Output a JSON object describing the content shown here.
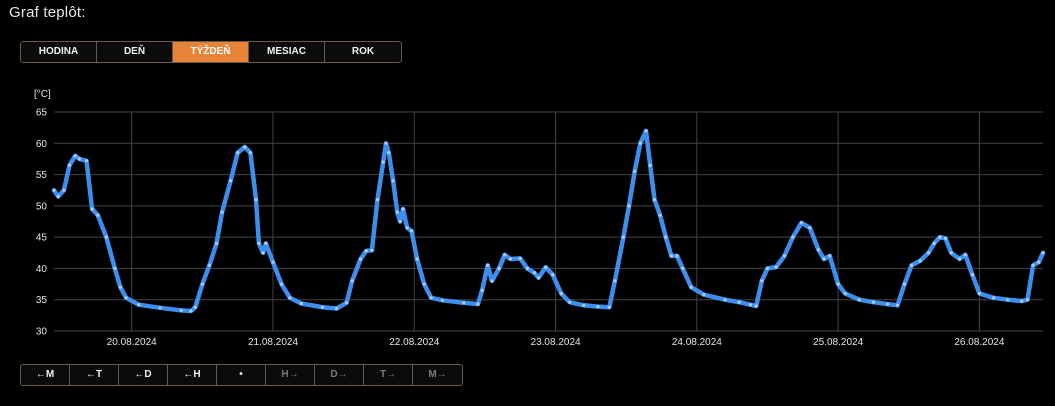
{
  "page": {
    "title": "Graf teplôt:"
  },
  "period_tabs": [
    {
      "label": "HODINA",
      "active": false
    },
    {
      "label": "DEŇ",
      "active": false
    },
    {
      "label": "TÝŽDEŇ",
      "active": true
    },
    {
      "label": "MESIAC",
      "active": false
    },
    {
      "label": "ROK",
      "active": false
    }
  ],
  "nav_buttons": [
    {
      "label": "←M",
      "enabled": true
    },
    {
      "label": "←T",
      "enabled": true
    },
    {
      "label": "←D",
      "enabled": true
    },
    {
      "label": "←H",
      "enabled": true
    },
    {
      "label": "•",
      "enabled": true
    },
    {
      "label": "H→",
      "enabled": false
    },
    {
      "label": "D→",
      "enabled": false
    },
    {
      "label": "T→",
      "enabled": false
    },
    {
      "label": "M→",
      "enabled": false
    }
  ],
  "colors": {
    "accent": "#e8843a",
    "series": "#3d8fef",
    "grid": "#444444",
    "background": "#000000"
  },
  "chart_data": {
    "type": "line",
    "ylabel": "[°C]",
    "ylim": [
      30,
      65
    ],
    "yticks": [
      30,
      35,
      40,
      45,
      50,
      55,
      60,
      65
    ],
    "xlim": [
      19.45,
      26.45
    ],
    "xticks": [
      20,
      21,
      22,
      23,
      24,
      25,
      26
    ],
    "xtick_labels": [
      "20.08.2024",
      "21.08.2024",
      "22.08.2024",
      "23.08.2024",
      "24.08.2024",
      "25.08.2024",
      "26.08.2024"
    ],
    "grid": true,
    "x_unit": "day of August 2024",
    "series": [
      {
        "values": [
          [
            19.45,
            52.5
          ],
          [
            19.48,
            51.5
          ],
          [
            19.52,
            52.5
          ],
          [
            19.56,
            56.5
          ],
          [
            19.6,
            58.0
          ],
          [
            19.63,
            57.5
          ],
          [
            19.68,
            57.2
          ],
          [
            19.72,
            49.5
          ],
          [
            19.76,
            48.5
          ],
          [
            19.82,
            45.0
          ],
          [
            19.88,
            40.0
          ],
          [
            19.92,
            37.0
          ],
          [
            19.96,
            35.3
          ],
          [
            20.05,
            34.2
          ],
          [
            20.2,
            33.7
          ],
          [
            20.35,
            33.3
          ],
          [
            20.42,
            33.2
          ],
          [
            20.45,
            33.8
          ],
          [
            20.5,
            37.5
          ],
          [
            20.55,
            40.5
          ],
          [
            20.6,
            44.0
          ],
          [
            20.64,
            49.0
          ],
          [
            20.7,
            54.0
          ],
          [
            20.75,
            58.5
          ],
          [
            20.8,
            59.4
          ],
          [
            20.84,
            58.5
          ],
          [
            20.88,
            51.0
          ],
          [
            20.9,
            44.0
          ],
          [
            20.93,
            42.5
          ],
          [
            20.95,
            44.0
          ],
          [
            21.0,
            41.0
          ],
          [
            21.06,
            37.5
          ],
          [
            21.12,
            35.3
          ],
          [
            21.2,
            34.4
          ],
          [
            21.35,
            33.8
          ],
          [
            21.45,
            33.6
          ],
          [
            21.52,
            34.5
          ],
          [
            21.56,
            38.0
          ],
          [
            21.62,
            41.5
          ],
          [
            21.66,
            42.8
          ],
          [
            21.7,
            42.9
          ],
          [
            21.74,
            51.0
          ],
          [
            21.78,
            57.0
          ],
          [
            21.8,
            60.0
          ],
          [
            21.82,
            58.5
          ],
          [
            21.85,
            54.0
          ],
          [
            21.88,
            49.0
          ],
          [
            21.9,
            47.5
          ],
          [
            21.92,
            49.5
          ],
          [
            21.95,
            46.5
          ],
          [
            21.98,
            46.0
          ],
          [
            22.02,
            41.5
          ],
          [
            22.07,
            37.5
          ],
          [
            22.12,
            35.3
          ],
          [
            22.2,
            34.9
          ],
          [
            22.35,
            34.5
          ],
          [
            22.45,
            34.3
          ],
          [
            22.48,
            36.5
          ],
          [
            22.52,
            40.5
          ],
          [
            22.55,
            38.0
          ],
          [
            22.6,
            40.0
          ],
          [
            22.64,
            42.2
          ],
          [
            22.68,
            41.5
          ],
          [
            22.75,
            41.6
          ],
          [
            22.8,
            40.0
          ],
          [
            22.85,
            39.3
          ],
          [
            22.88,
            38.5
          ],
          [
            22.93,
            40.2
          ],
          [
            22.98,
            39.0
          ],
          [
            23.04,
            36.0
          ],
          [
            23.1,
            34.6
          ],
          [
            23.2,
            34.1
          ],
          [
            23.3,
            33.9
          ],
          [
            23.38,
            33.8
          ],
          [
            23.42,
            38.0
          ],
          [
            23.48,
            45.0
          ],
          [
            23.52,
            50.0
          ],
          [
            23.56,
            55.5
          ],
          [
            23.6,
            60.0
          ],
          [
            23.64,
            62.0
          ],
          [
            23.67,
            56.5
          ],
          [
            23.7,
            51.0
          ],
          [
            23.74,
            48.5
          ],
          [
            23.78,
            45.0
          ],
          [
            23.82,
            42.0
          ],
          [
            23.86,
            42.0
          ],
          [
            23.9,
            40.0
          ],
          [
            23.96,
            37.0
          ],
          [
            24.05,
            35.8
          ],
          [
            24.2,
            35.0
          ],
          [
            24.3,
            34.6
          ],
          [
            24.38,
            34.2
          ],
          [
            24.42,
            34.0
          ],
          [
            24.46,
            38.0
          ],
          [
            24.5,
            40.0
          ],
          [
            24.56,
            40.2
          ],
          [
            24.62,
            42.0
          ],
          [
            24.68,
            45.0
          ],
          [
            24.74,
            47.3
          ],
          [
            24.8,
            46.5
          ],
          [
            24.86,
            43.0
          ],
          [
            24.9,
            41.5
          ],
          [
            24.94,
            42.0
          ],
          [
            25.0,
            37.5
          ],
          [
            25.05,
            36.0
          ],
          [
            25.15,
            35.0
          ],
          [
            25.25,
            34.6
          ],
          [
            25.35,
            34.3
          ],
          [
            25.42,
            34.1
          ],
          [
            25.47,
            37.5
          ],
          [
            25.52,
            40.5
          ],
          [
            25.58,
            41.2
          ],
          [
            25.64,
            42.5
          ],
          [
            25.68,
            44.0
          ],
          [
            25.72,
            45.0
          ],
          [
            25.76,
            44.8
          ],
          [
            25.8,
            42.5
          ],
          [
            25.86,
            41.5
          ],
          [
            25.9,
            42.2
          ],
          [
            25.95,
            39.0
          ],
          [
            26.0,
            36.0
          ],
          [
            26.1,
            35.3
          ],
          [
            26.2,
            35.0
          ],
          [
            26.3,
            34.8
          ],
          [
            26.34,
            35.0
          ],
          [
            26.38,
            40.5
          ],
          [
            26.42,
            41.0
          ],
          [
            26.45,
            42.5
          ]
        ]
      }
    ]
  }
}
